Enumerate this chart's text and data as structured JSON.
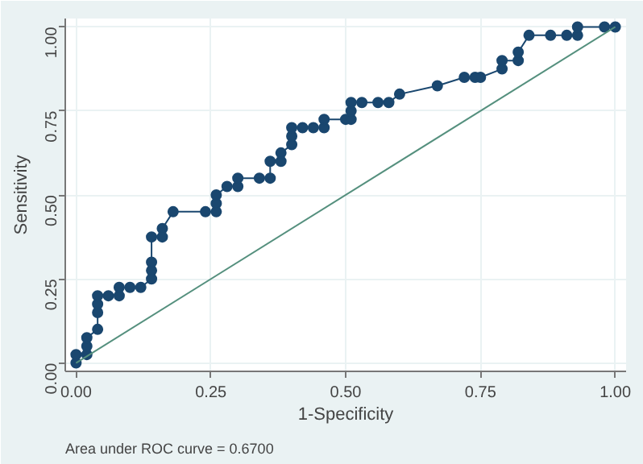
{
  "chart_data": {
    "type": "line",
    "xlabel": "1-Specificity",
    "ylabel": "Sensitivity",
    "annotations": [
      "Area under ROC curve = 0.6700"
    ],
    "xlim": [
      -0.02,
      1.02
    ],
    "ylim": [
      -0.025,
      1.025
    ],
    "xticks": [
      {
        "value": 0,
        "label": "0.00"
      },
      0.25,
      {
        "value": 0.5,
        "label": "0.50"
      },
      0.75,
      {
        "value": 1,
        "label": "1.00"
      }
    ],
    "yticks": [
      {
        "value": 0,
        "label": "0.00"
      },
      0.25,
      {
        "value": 0.5,
        "label": "0.50"
      },
      0.75,
      {
        "value": 1,
        "label": "1.00"
      }
    ],
    "grid": true,
    "series": [
      {
        "color": "#1a476f",
        "marker": "circle",
        "x": [
          0,
          0,
          0.02,
          0.02,
          0.02,
          0.04,
          0.04,
          0.04,
          0.04,
          0.06,
          0.08,
          0.08,
          0.1,
          0.12,
          0.14,
          0.14,
          0.14,
          0.14,
          0.16,
          0.16,
          0.18,
          0.24,
          0.26,
          0.26,
          0.26,
          0.28,
          0.3,
          0.3,
          0.34,
          0.36,
          0.36,
          0.38,
          0.38,
          0.4,
          0.4,
          0.4,
          0.42,
          0.44,
          0.46,
          0.46,
          0.5,
          0.51,
          0.51,
          0.51,
          0.53,
          0.56,
          0.58,
          0.6,
          0.67,
          0.72,
          0.74,
          0.75,
          0.79,
          0.79,
          0.82,
          0.82,
          0.84,
          0.88,
          0.91,
          0.93,
          0.93,
          0.98,
          1.0
        ],
        "values": [
          0,
          0.025,
          0.025,
          0.05,
          0.075,
          0.1,
          0.15,
          0.175,
          0.2,
          0.2,
          0.2,
          0.225,
          0.225,
          0.225,
          0.25,
          0.275,
          0.3,
          0.375,
          0.375,
          0.4,
          0.45,
          0.45,
          0.45,
          0.475,
          0.5,
          0.525,
          0.525,
          0.55,
          0.55,
          0.55,
          0.6,
          0.6,
          0.625,
          0.65,
          0.675,
          0.7,
          0.7,
          0.7,
          0.7,
          0.725,
          0.725,
          0.725,
          0.75,
          0.775,
          0.775,
          0.775,
          0.775,
          0.8,
          0.825,
          0.85,
          0.85,
          0.85,
          0.875,
          0.9,
          0.9,
          0.925,
          0.975,
          0.975,
          0.975,
          0.975,
          1.0,
          1.0,
          1.0
        ]
      },
      {
        "color": "#55907e",
        "marker": "none",
        "x": [
          0,
          1
        ],
        "values": [
          0,
          1
        ]
      }
    ]
  }
}
